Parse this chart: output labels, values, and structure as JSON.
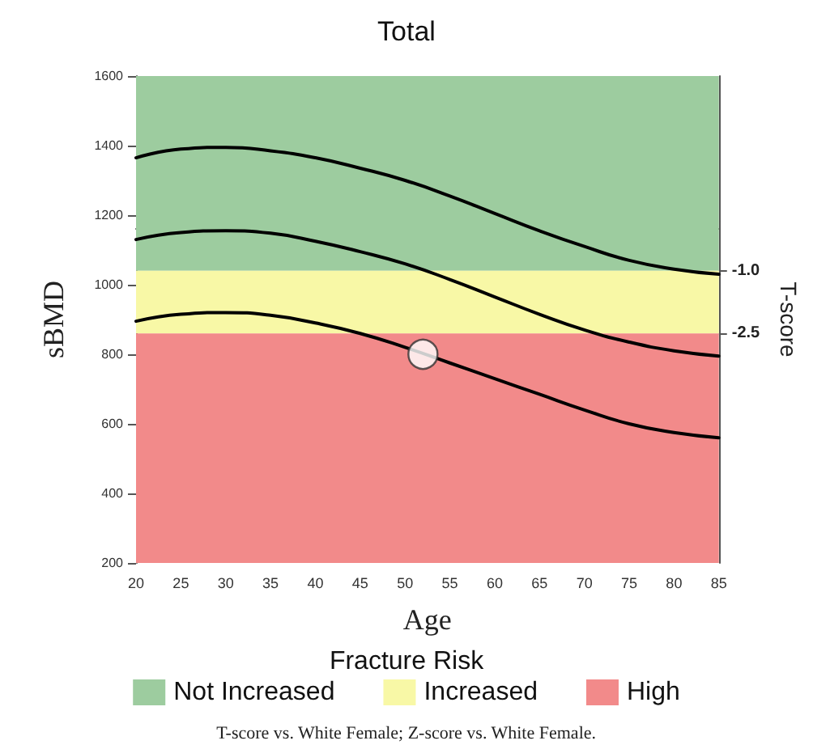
{
  "chart_data": {
    "type": "line",
    "title": "Total",
    "xlabel": "Age",
    "ylabel": "sBMD",
    "y2label": "T-score",
    "legend_title": "Fracture Risk",
    "x": [
      20,
      25,
      30,
      35,
      40,
      45,
      50,
      55,
      60,
      65,
      70,
      75,
      80,
      85
    ],
    "series": [
      {
        "color": "#000000",
        "values": [
          1365,
          1390,
          1395,
          1385,
          1365,
          1335,
          1300,
          1255,
          1205,
          1155,
          1110,
          1070,
          1045,
          1030
        ]
      },
      {
        "color": "#000000",
        "values": [
          1130,
          1150,
          1155,
          1148,
          1125,
          1095,
          1060,
          1015,
          965,
          915,
          870,
          835,
          810,
          795
        ]
      },
      {
        "color": "#000000",
        "values": [
          895,
          915,
          920,
          912,
          890,
          860,
          820,
          775,
          730,
          685,
          640,
          600,
          575,
          560
        ]
      },
      {
        "type": "scatter",
        "color": "#ffffff",
        "x": [
          52
        ],
        "values": [
          800
        ]
      }
    ],
    "bands": [
      {
        "axis": "y",
        "from": 1040,
        "to": 1600,
        "label": "Not Increased",
        "color": "#9dcc9f"
      },
      {
        "axis": "y",
        "from": 860,
        "to": 1040,
        "label": "Increased",
        "color": "#f8f8a6"
      },
      {
        "axis": "y",
        "from": 200,
        "to": 860,
        "label": "High",
        "color": "#f28a8a"
      }
    ],
    "xlim": [
      20,
      85
    ],
    "xticks": [
      20,
      25,
      30,
      35,
      40,
      45,
      50,
      55,
      60,
      65,
      70,
      75,
      80,
      85
    ],
    "ylim": [
      200,
      1600
    ],
    "yticks": [
      200,
      400,
      600,
      800,
      1000,
      1200,
      1400,
      1600
    ],
    "y2lim": [
      -8,
      3.667
    ],
    "y2ticks": [
      {
        "value": -1.0,
        "label": "-1.0"
      },
      {
        "value": -2.5,
        "label": "-2.5"
      }
    ],
    "annotations": [
      "T-score vs. White Female; Z-score vs. White Female."
    ],
    "legend": "bottom",
    "grid": false,
    "line_style": "solid"
  }
}
